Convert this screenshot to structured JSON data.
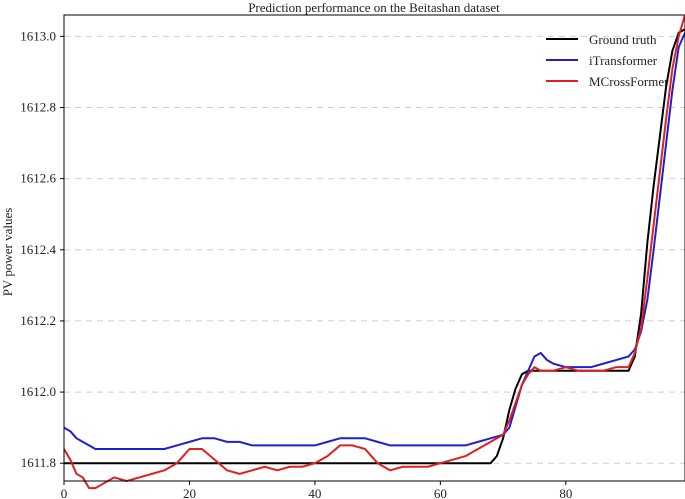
{
  "chart_data": {
    "type": "line",
    "title": "Prediction performance on the Beitashan dataset",
    "xlabel": "",
    "ylabel": "PV power values",
    "xlim": [
      0,
      99
    ],
    "ylim": [
      1611.75,
      1613.06
    ],
    "x_ticks": [
      0,
      20,
      40,
      60,
      80
    ],
    "y_ticks": [
      1611.8,
      1612.0,
      1612.2,
      1612.4,
      1612.6,
      1612.8,
      1613.0
    ],
    "grid": "horizontal dashed",
    "legend_position": "top-right",
    "series": [
      {
        "name": "Ground truth",
        "color": "#000000",
        "x": [
          0,
          5,
          10,
          15,
          20,
          25,
          30,
          35,
          40,
          45,
          50,
          55,
          60,
          65,
          68,
          69,
          70,
          71,
          72,
          73,
          74,
          75,
          80,
          85,
          90,
          91,
          92,
          93,
          94,
          95,
          96,
          97,
          98,
          99
        ],
        "values": [
          1611.8,
          1611.8,
          1611.8,
          1611.8,
          1611.8,
          1611.8,
          1611.8,
          1611.8,
          1611.8,
          1611.8,
          1611.8,
          1611.8,
          1611.8,
          1611.8,
          1611.8,
          1611.82,
          1611.87,
          1611.95,
          1612.01,
          1612.05,
          1612.06,
          1612.06,
          1612.06,
          1612.06,
          1612.06,
          1612.1,
          1612.22,
          1612.42,
          1612.58,
          1612.72,
          1612.86,
          1612.96,
          1613.01,
          1613.02
        ]
      },
      {
        "name": "iTransformer",
        "color": "#1f1fd0",
        "x": [
          0,
          1,
          2,
          3,
          4,
          5,
          6,
          8,
          10,
          12,
          14,
          16,
          18,
          20,
          22,
          24,
          26,
          28,
          30,
          32,
          34,
          36,
          38,
          40,
          42,
          44,
          46,
          48,
          50,
          52,
          54,
          56,
          58,
          60,
          62,
          64,
          66,
          68,
          70,
          71,
          72,
          73,
          74,
          75,
          76,
          77,
          78,
          80,
          82,
          84,
          86,
          88,
          90,
          91,
          92,
          93,
          94,
          95,
          96,
          97,
          98,
          99
        ],
        "values": [
          1611.9,
          1611.89,
          1611.87,
          1611.86,
          1611.85,
          1611.84,
          1611.84,
          1611.84,
          1611.84,
          1611.84,
          1611.84,
          1611.84,
          1611.85,
          1611.86,
          1611.87,
          1611.87,
          1611.86,
          1611.86,
          1611.85,
          1611.85,
          1611.85,
          1611.85,
          1611.85,
          1611.85,
          1611.86,
          1611.87,
          1611.87,
          1611.87,
          1611.86,
          1611.85,
          1611.85,
          1611.85,
          1611.85,
          1611.85,
          1611.85,
          1611.85,
          1611.86,
          1611.87,
          1611.88,
          1611.9,
          1611.96,
          1612.02,
          1612.06,
          1612.1,
          1612.11,
          1612.09,
          1612.08,
          1612.07,
          1612.07,
          1612.07,
          1612.08,
          1612.09,
          1612.1,
          1612.12,
          1612.17,
          1612.26,
          1612.4,
          1612.55,
          1612.7,
          1612.85,
          1612.97,
          1613.01
        ]
      },
      {
        "name": "MCrossFormer",
        "color": "#e02020",
        "x": [
          0,
          1,
          2,
          3,
          4,
          5,
          6,
          8,
          10,
          12,
          14,
          16,
          18,
          20,
          22,
          24,
          26,
          28,
          30,
          32,
          34,
          36,
          38,
          40,
          42,
          44,
          46,
          48,
          50,
          52,
          54,
          56,
          58,
          60,
          62,
          64,
          66,
          68,
          70,
          71,
          72,
          73,
          74,
          75,
          76,
          78,
          80,
          82,
          84,
          86,
          88,
          90,
          91,
          92,
          93,
          94,
          95,
          96,
          97,
          98,
          99
        ],
        "values": [
          1611.84,
          1611.81,
          1611.77,
          1611.76,
          1611.73,
          1611.73,
          1611.74,
          1611.76,
          1611.75,
          1611.76,
          1611.77,
          1611.78,
          1611.8,
          1611.84,
          1611.84,
          1611.81,
          1611.78,
          1611.77,
          1611.78,
          1611.79,
          1611.78,
          1611.79,
          1611.79,
          1611.8,
          1611.82,
          1611.85,
          1611.85,
          1611.84,
          1611.8,
          1611.78,
          1611.79,
          1611.79,
          1611.79,
          1611.8,
          1611.81,
          1611.82,
          1611.84,
          1611.86,
          1611.88,
          1611.92,
          1611.97,
          1612.02,
          1612.05,
          1612.07,
          1612.06,
          1612.06,
          1612.07,
          1612.06,
          1612.06,
          1612.06,
          1612.07,
          1612.07,
          1612.11,
          1612.18,
          1612.32,
          1612.47,
          1612.62,
          1612.77,
          1612.91,
          1613.0,
          1613.06
        ]
      }
    ]
  }
}
